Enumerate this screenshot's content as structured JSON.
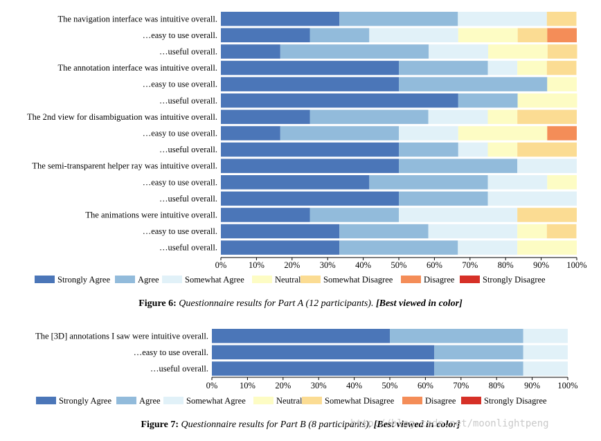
{
  "colors": {
    "Strongly Agree": "#4b76b8",
    "Agree": "#92bbdb",
    "Somewhat Agree": "#e1f1f8",
    "Neutral": "#fdfcc4",
    "Somewhat Disagree": "#fbdc93",
    "Disagree": "#f48d58",
    "Strongly Disagree": "#d63027"
  },
  "legend": [
    "Strongly Agree",
    "Agree",
    "Somewhat Agree",
    "Neutral",
    "Somewhat Disagree",
    "Disagree",
    "Strongly Disagree"
  ],
  "figures": [
    {
      "caption_label": "Figure 6:",
      "caption_text": "Questionnaire results for Part A (12 participants).",
      "caption_note": "[Best viewed in color]"
    },
    {
      "caption_label": "Figure 7:",
      "caption_text": "Questionnaire results for Part B (8 participants).",
      "caption_note": "[Best viewed in color]"
    }
  ],
  "watermark": "http://blog.csdn.net/moonlightpeng",
  "chart_data": [
    {
      "type": "bar",
      "orientation": "horizontal",
      "stacked": true,
      "xlabel": "",
      "ylabel": "",
      "xlim": [
        0,
        100
      ],
      "xticks": [
        "0%",
        "10%",
        "20%",
        "30%",
        "40%",
        "50%",
        "60%",
        "70%",
        "80%",
        "90%",
        "100%"
      ],
      "legend_position": "bottom",
      "categories": [
        "The navigation interface was intuitive overall.",
        "…easy to use overall.",
        "…useful overall.",
        "The annotation interface was intuitive overall.",
        "…easy to use overall.",
        "…useful overall.",
        "The 2nd view for disambiguation was intuitive overall.",
        "…easy to use overall.",
        "…useful overall.",
        "The semi-transparent helper ray was intuitive overall.",
        "…easy to use overall.",
        "…useful overall.",
        "The animations were intuitive overall.",
        "…easy to use overall.",
        "…useful overall."
      ],
      "series": [
        {
          "name": "Strongly Agree",
          "values": [
            33.3,
            25,
            16.7,
            50,
            50,
            66.7,
            25,
            16.7,
            50,
            50,
            41.7,
            50,
            25,
            33.3,
            33.3
          ]
        },
        {
          "name": "Agree",
          "values": [
            33.3,
            16.7,
            41.7,
            25,
            41.7,
            16.7,
            33.3,
            33.3,
            16.7,
            33.3,
            33.3,
            25,
            25,
            25,
            33.3
          ]
        },
        {
          "name": "Somewhat Agree",
          "values": [
            25,
            25,
            16.7,
            8.3,
            0,
            0,
            16.7,
            16.7,
            8.3,
            16.7,
            16.7,
            25,
            33.3,
            25,
            16.7
          ]
        },
        {
          "name": "Neutral",
          "values": [
            0,
            16.7,
            16.7,
            8.3,
            8.3,
            16.7,
            8.3,
            25,
            8.3,
            0,
            8.3,
            0,
            0,
            8.3,
            16.7
          ]
        },
        {
          "name": "Somewhat Disagree",
          "values": [
            8.3,
            8.3,
            8.3,
            8.3,
            0,
            0,
            16.7,
            0,
            16.7,
            0,
            0,
            0,
            16.7,
            8.3,
            0
          ]
        },
        {
          "name": "Disagree",
          "values": [
            0,
            8.3,
            0,
            0,
            0,
            0,
            0,
            8.3,
            0,
            0,
            0,
            0,
            0,
            0,
            0
          ]
        },
        {
          "name": "Strongly Disagree",
          "values": [
            0,
            0,
            0,
            0,
            0,
            0,
            0,
            0,
            0,
            0,
            0,
            0,
            0,
            0,
            0
          ]
        }
      ]
    },
    {
      "type": "bar",
      "orientation": "horizontal",
      "stacked": true,
      "xlabel": "",
      "ylabel": "",
      "xlim": [
        0,
        100
      ],
      "xticks": [
        "0%",
        "10%",
        "20%",
        "30%",
        "40%",
        "50%",
        "60%",
        "70%",
        "80%",
        "90%",
        "100%"
      ],
      "legend_position": "bottom",
      "categories": [
        "The [3D] annotations I saw were intuitive overall.",
        "…easy to use overall.",
        "…useful overall."
      ],
      "series": [
        {
          "name": "Strongly Agree",
          "values": [
            50,
            62.5,
            62.5
          ]
        },
        {
          "name": "Agree",
          "values": [
            37.5,
            25,
            25
          ]
        },
        {
          "name": "Somewhat Agree",
          "values": [
            12.5,
            12.5,
            12.5
          ]
        },
        {
          "name": "Neutral",
          "values": [
            0,
            0,
            0
          ]
        },
        {
          "name": "Somewhat Disagree",
          "values": [
            0,
            0,
            0
          ]
        },
        {
          "name": "Disagree",
          "values": [
            0,
            0,
            0
          ]
        },
        {
          "name": "Strongly Disagree",
          "values": [
            0,
            0,
            0
          ]
        }
      ]
    }
  ]
}
